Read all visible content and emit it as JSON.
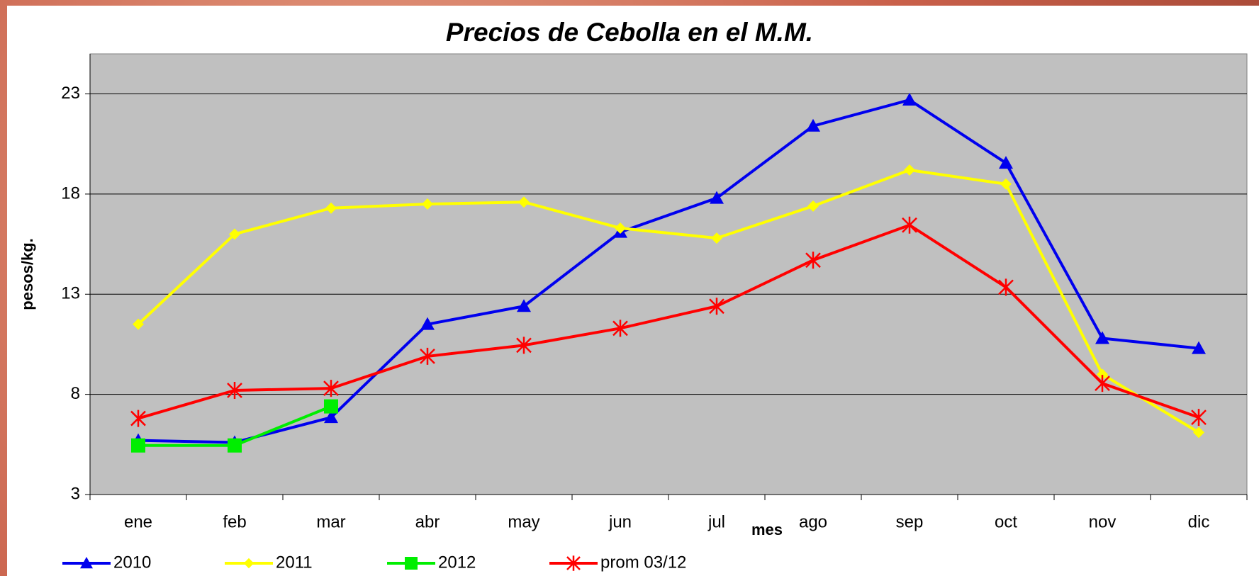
{
  "chart_data": {
    "type": "line",
    "title": "Precios de Cebolla en el M.M.",
    "x_label": "mes",
    "y_label": "pesos/kg.",
    "categories": [
      "ene",
      "feb",
      "mar",
      "abr",
      "may",
      "jun",
      "jul",
      "ago",
      "sep",
      "oct",
      "nov",
      "dic"
    ],
    "series": [
      {
        "name": "2010",
        "color": "#0000ee",
        "marker": "triangle",
        "values": [
          5.7,
          5.6,
          6.85,
          11.5,
          12.4,
          16.1,
          17.8,
          21.4,
          22.7,
          19.55,
          10.8,
          10.3
        ]
      },
      {
        "name": "2011",
        "color": "#ffff00",
        "marker": "diamond",
        "values": [
          11.5,
          16.0,
          17.3,
          17.5,
          17.6,
          16.3,
          15.8,
          17.4,
          19.2,
          18.5,
          9.0,
          6.1
        ]
      },
      {
        "name": "2012",
        "color": "#00ee00",
        "marker": "square",
        "values": [
          5.45,
          5.45,
          7.4,
          null,
          null,
          null,
          null,
          null,
          null,
          null,
          null,
          null
        ]
      },
      {
        "name": "prom 03/12",
        "color": "#ff0000",
        "marker": "star",
        "values": [
          6.8,
          8.2,
          8.3,
          9.9,
          10.45,
          11.3,
          12.4,
          14.7,
          16.45,
          13.35,
          8.55,
          6.85
        ]
      }
    ],
    "ylim": [
      3,
      25
    ],
    "yticks": [
      3,
      8,
      13,
      18,
      23
    ],
    "grid": true,
    "legend": "bottom"
  }
}
